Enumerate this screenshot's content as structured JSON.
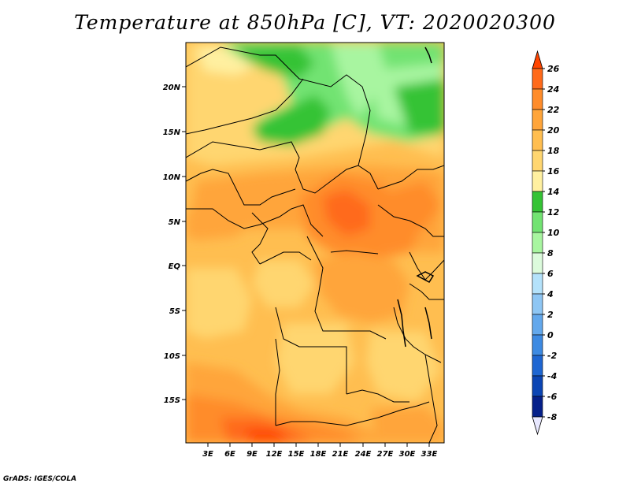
{
  "title": "Temperature at 850hPa [C], VT: 2020020300",
  "credit": "GrADS: IGES/COLA",
  "map": {
    "lat_labels": [
      "20N",
      "15N",
      "10N",
      "5N",
      "EQ",
      "5S",
      "10S",
      "15S"
    ],
    "lon_labels": [
      "3E",
      "6E",
      "9E",
      "12E",
      "15E",
      "18E",
      "21E",
      "24E",
      "27E",
      "30E",
      "33E"
    ]
  },
  "colorbar": {
    "labels": [
      "26",
      "24",
      "22",
      "20",
      "18",
      "16",
      "14",
      "12",
      "10",
      "8",
      "6",
      "4",
      "2",
      "0",
      "-2",
      "-4",
      "-6",
      "-8"
    ],
    "colors": [
      "#ff4500",
      "#ff6a1a",
      "#ff8c2a",
      "#ffa53a",
      "#ffbe50",
      "#ffd670",
      "#fff0a0",
      "#35c335",
      "#72e372",
      "#a8f5a0",
      "#dcfbdc",
      "#b4e2fb",
      "#8ec6f4",
      "#63a8ec",
      "#3d8ae2",
      "#1e66d2",
      "#0b45b4",
      "#05208a",
      "#000060"
    ]
  }
}
